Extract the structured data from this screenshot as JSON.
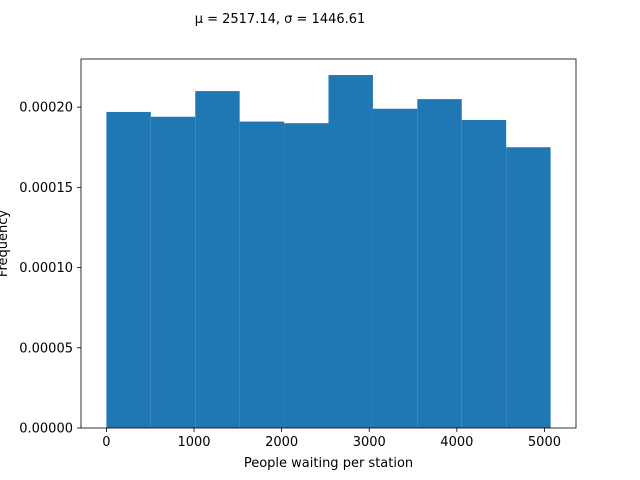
{
  "chart_data": {
    "type": "bar",
    "title": "μ = 2517.14,  σ = 1446.61",
    "xlabel": "People waiting per station",
    "ylabel": "Frequency",
    "xlim": [
      -290,
      5360
    ],
    "ylim": [
      0,
      0.00023
    ],
    "xticks": [
      0,
      1000,
      2000,
      3000,
      4000,
      5000
    ],
    "xtick_labels": [
      "0",
      "1000",
      "2000",
      "3000",
      "4000",
      "5000"
    ],
    "yticks": [
      0,
      5e-05,
      0.0001,
      0.00015,
      0.0002
    ],
    "ytick_labels": [
      "0.00000",
      "0.00005",
      "0.00010",
      "0.00015",
      "0.00020"
    ],
    "bin_edges": [
      0,
      507,
      1014,
      1521,
      2028,
      2535,
      3042,
      3549,
      4056,
      4563,
      5070
    ],
    "values": [
      0.000197,
      0.000194,
      0.00021,
      0.000191,
      0.00019,
      0.00022,
      0.000199,
      0.000205,
      0.000192,
      0.000175
    ],
    "color": "#1f77b4",
    "grid": false
  }
}
